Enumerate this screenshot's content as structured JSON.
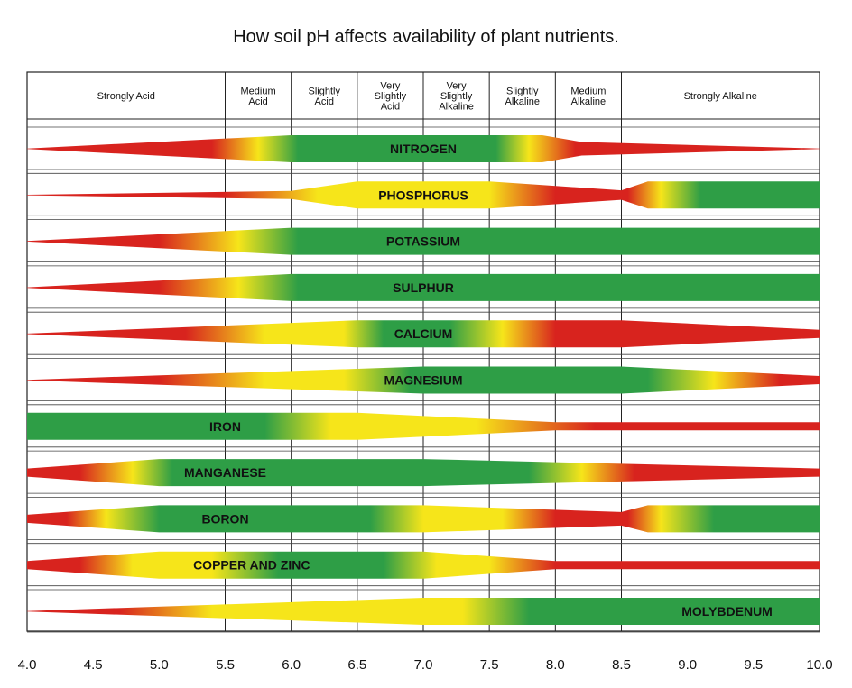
{
  "title": "How soil pH affects availability of plant nutrients.",
  "chart_data": {
    "type": "band-availability",
    "xlim": [
      4.0,
      10.0
    ],
    "x_ticks": [
      "4.0",
      "4.5",
      "5.0",
      "5.5",
      "6.0",
      "6.5",
      "7.0",
      "7.5",
      "8.0",
      "8.5",
      "9.0",
      "9.5",
      "10.0"
    ],
    "ph_zones": [
      {
        "label": [
          "Strongly Acid"
        ],
        "from": 4.0,
        "to": 5.5
      },
      {
        "label": [
          "Medium",
          "Acid"
        ],
        "from": 5.5,
        "to": 6.0
      },
      {
        "label": [
          "Slightly",
          "Acid"
        ],
        "from": 6.0,
        "to": 6.5
      },
      {
        "label": [
          "Very",
          "Slightly",
          "Acid"
        ],
        "from": 6.5,
        "to": 7.0
      },
      {
        "label": [
          "Very",
          "Slightly",
          "Alkaline"
        ],
        "from": 7.0,
        "to": 7.5
      },
      {
        "label": [
          "Slightly",
          "Alkaline"
        ],
        "from": 7.5,
        "to": 8.0
      },
      {
        "label": [
          "Medium",
          "Alkaline"
        ],
        "from": 8.0,
        "to": 8.5
      },
      {
        "label": [
          "Strongly Alkaline"
        ],
        "from": 8.5,
        "to": 10.0
      }
    ],
    "colors": {
      "high": "#2e9e46",
      "medium": "#f6e51a",
      "low": "#d8231e"
    },
    "nutrients": [
      {
        "name": "NITROGEN",
        "label_ph": 7.0,
        "width": [
          [
            4.0,
            0.0
          ],
          [
            6.0,
            1.0
          ],
          [
            7.9,
            1.0
          ],
          [
            8.2,
            0.5
          ],
          [
            10.0,
            0.0
          ]
        ],
        "color": [
          [
            4.0,
            "low"
          ],
          [
            5.4,
            "low"
          ],
          [
            5.75,
            "medium"
          ],
          [
            6.05,
            "high"
          ],
          [
            7.55,
            "high"
          ],
          [
            7.8,
            "medium"
          ],
          [
            8.15,
            "low"
          ],
          [
            10.0,
            "low"
          ]
        ]
      },
      {
        "name": "PHOSPHORUS",
        "label_ph": 7.0,
        "width": [
          [
            4.0,
            0.0
          ],
          [
            6.0,
            0.3
          ],
          [
            6.5,
            1.0
          ],
          [
            7.5,
            1.0
          ],
          [
            8.5,
            0.35
          ],
          [
            8.7,
            1.0
          ],
          [
            10.0,
            1.0
          ]
        ],
        "color": [
          [
            4.0,
            "low"
          ],
          [
            5.5,
            "low"
          ],
          [
            6.2,
            "medium"
          ],
          [
            6.8,
            "medium"
          ],
          [
            7.5,
            "medium"
          ],
          [
            8.0,
            "low"
          ],
          [
            8.55,
            "low"
          ],
          [
            8.8,
            "medium"
          ],
          [
            9.1,
            "high"
          ],
          [
            10.0,
            "high"
          ]
        ]
      },
      {
        "name": "POTASSIUM",
        "label_ph": 7.0,
        "width": [
          [
            4.0,
            0.0
          ],
          [
            6.0,
            1.0
          ],
          [
            10.0,
            1.0
          ]
        ],
        "color": [
          [
            4.0,
            "low"
          ],
          [
            5.0,
            "low"
          ],
          [
            5.6,
            "medium"
          ],
          [
            6.05,
            "high"
          ],
          [
            10.0,
            "high"
          ]
        ]
      },
      {
        "name": "SULPHUR",
        "label_ph": 7.0,
        "width": [
          [
            4.0,
            0.0
          ],
          [
            6.0,
            1.0
          ],
          [
            10.0,
            1.0
          ]
        ],
        "color": [
          [
            4.0,
            "low"
          ],
          [
            5.0,
            "low"
          ],
          [
            5.6,
            "medium"
          ],
          [
            6.05,
            "high"
          ],
          [
            10.0,
            "high"
          ]
        ]
      },
      {
        "name": "CALCIUM",
        "label_ph": 7.0,
        "width": [
          [
            4.0,
            0.0
          ],
          [
            6.5,
            1.0
          ],
          [
            8.5,
            1.0
          ],
          [
            10.0,
            0.3
          ]
        ],
        "color": [
          [
            4.0,
            "low"
          ],
          [
            5.2,
            "low"
          ],
          [
            5.8,
            "medium"
          ],
          [
            6.4,
            "medium"
          ],
          [
            6.7,
            "high"
          ],
          [
            7.2,
            "high"
          ],
          [
            7.6,
            "medium"
          ],
          [
            8.0,
            "low"
          ],
          [
            10.0,
            "low"
          ]
        ]
      },
      {
        "name": "MAGNESIUM",
        "label_ph": 7.0,
        "width": [
          [
            4.0,
            0.0
          ],
          [
            7.0,
            1.0
          ],
          [
            8.5,
            1.0
          ],
          [
            10.0,
            0.3
          ]
        ],
        "color": [
          [
            4.0,
            "low"
          ],
          [
            5.0,
            "low"
          ],
          [
            5.8,
            "medium"
          ],
          [
            6.4,
            "medium"
          ],
          [
            6.9,
            "high"
          ],
          [
            8.7,
            "high"
          ],
          [
            9.2,
            "medium"
          ],
          [
            9.7,
            "low"
          ],
          [
            10.0,
            "low"
          ]
        ]
      },
      {
        "name": "IRON",
        "label_ph": 5.5,
        "width": [
          [
            4.0,
            1.0
          ],
          [
            6.5,
            1.0
          ],
          [
            8.0,
            0.3
          ],
          [
            10.0,
            0.3
          ]
        ],
        "color": [
          [
            4.0,
            "high"
          ],
          [
            5.8,
            "high"
          ],
          [
            6.3,
            "medium"
          ],
          [
            7.4,
            "medium"
          ],
          [
            8.3,
            "low"
          ],
          [
            10.0,
            "low"
          ]
        ]
      },
      {
        "name": "MANGANESE",
        "label_ph": 5.5,
        "width": [
          [
            4.0,
            0.3
          ],
          [
            5.0,
            1.0
          ],
          [
            7.0,
            1.0
          ],
          [
            10.0,
            0.3
          ]
        ],
        "color": [
          [
            4.0,
            "low"
          ],
          [
            4.4,
            "low"
          ],
          [
            4.8,
            "medium"
          ],
          [
            5.1,
            "high"
          ],
          [
            7.8,
            "high"
          ],
          [
            8.2,
            "medium"
          ],
          [
            8.6,
            "low"
          ],
          [
            10.0,
            "low"
          ]
        ]
      },
      {
        "name": "BORON",
        "label_ph": 5.5,
        "width": [
          [
            4.0,
            0.3
          ],
          [
            5.0,
            1.0
          ],
          [
            7.0,
            1.0
          ],
          [
            8.5,
            0.5
          ],
          [
            8.7,
            1.0
          ],
          [
            10.0,
            1.0
          ]
        ],
        "color": [
          [
            4.0,
            "low"
          ],
          [
            4.3,
            "low"
          ],
          [
            4.6,
            "medium"
          ],
          [
            5.0,
            "high"
          ],
          [
            6.6,
            "high"
          ],
          [
            7.0,
            "medium"
          ],
          [
            7.6,
            "medium"
          ],
          [
            8.0,
            "low"
          ],
          [
            8.55,
            "low"
          ],
          [
            8.8,
            "medium"
          ],
          [
            9.2,
            "high"
          ],
          [
            10.0,
            "high"
          ]
        ]
      },
      {
        "name": "COPPER AND ZINC",
        "label_ph": 5.7,
        "width": [
          [
            4.0,
            0.3
          ],
          [
            5.0,
            1.0
          ],
          [
            7.0,
            1.0
          ],
          [
            8.0,
            0.3
          ],
          [
            10.0,
            0.3
          ]
        ],
        "color": [
          [
            4.0,
            "low"
          ],
          [
            4.4,
            "low"
          ],
          [
            4.8,
            "medium"
          ],
          [
            5.4,
            "medium"
          ],
          [
            5.9,
            "high"
          ],
          [
            6.7,
            "high"
          ],
          [
            7.1,
            "medium"
          ],
          [
            7.5,
            "medium"
          ],
          [
            8.0,
            "low"
          ],
          [
            10.0,
            "low"
          ]
        ]
      },
      {
        "name": "MOLYBDENUM",
        "label_ph": 9.3,
        "width": [
          [
            4.0,
            0.0
          ],
          [
            7.0,
            1.0
          ],
          [
            10.0,
            1.0
          ]
        ],
        "color": [
          [
            4.0,
            "low"
          ],
          [
            4.7,
            "low"
          ],
          [
            5.4,
            "medium"
          ],
          [
            7.3,
            "medium"
          ],
          [
            7.8,
            "high"
          ],
          [
            10.0,
            "high"
          ]
        ]
      }
    ]
  }
}
